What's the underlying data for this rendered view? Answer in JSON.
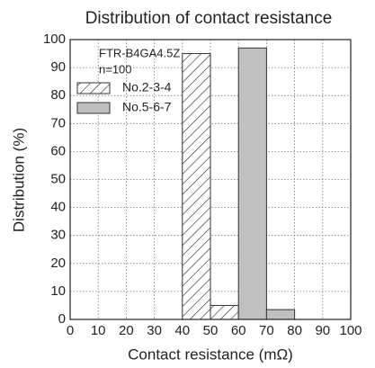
{
  "chart_data": {
    "type": "histogram",
    "title": "Distribution of contact resistance",
    "xlabel": "Contact resistance (mΩ)",
    "ylabel": "Distribution (%)",
    "annotations": [
      "FTR-B4GA4.5Z",
      "n=100"
    ],
    "bins": [
      0,
      10,
      20,
      30,
      40,
      50,
      60,
      70,
      80,
      90,
      100
    ],
    "series": [
      {
        "name": "No.2-3-4",
        "color": "#ffffff",
        "hatch": true,
        "values": [
          0,
          0,
          0,
          0,
          95,
          5,
          0,
          0,
          0,
          0
        ]
      },
      {
        "name": "No.5-6-7",
        "color": "#c0c0c0",
        "hatch": false,
        "values": [
          0,
          0,
          0,
          0,
          0,
          0,
          97,
          3.5,
          0,
          0
        ]
      }
    ],
    "xlim": [
      0,
      100
    ],
    "xticks": [
      0,
      10,
      20,
      30,
      40,
      50,
      60,
      70,
      80,
      90,
      100
    ],
    "ylim": [
      0,
      100
    ],
    "yticks": [
      0,
      10,
      20,
      30,
      40,
      50,
      60,
      70,
      80,
      90,
      100
    ],
    "grid": true
  }
}
